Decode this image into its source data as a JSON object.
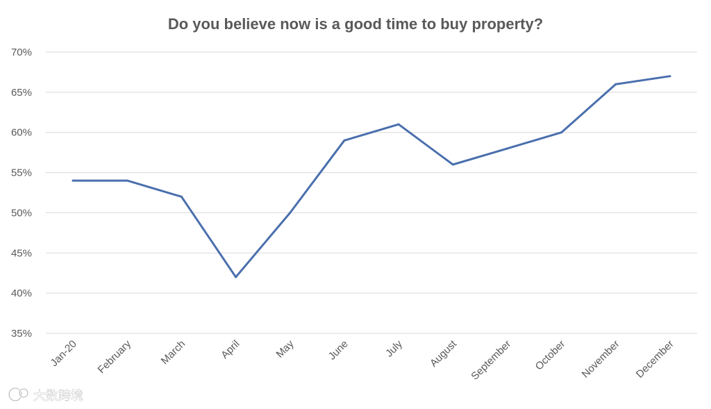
{
  "chart_data": {
    "type": "line",
    "title": "Do you believe now is a good time to buy property?",
    "xlabel": "",
    "ylabel": "",
    "categories": [
      "Jan-20",
      "February",
      "March",
      "April",
      "May",
      "June",
      "July",
      "August",
      "September",
      "October",
      "November",
      "December"
    ],
    "series": [
      {
        "values": [
          54,
          54,
          52,
          42,
          50,
          59,
          61,
          56,
          58,
          60,
          66,
          67
        ],
        "color": "#4a6fad"
      }
    ],
    "ylim": [
      35,
      70
    ],
    "yticks": [
      35,
      40,
      45,
      50,
      55,
      60,
      65,
      70
    ],
    "ytick_labels": [
      "35%",
      "40%",
      "45%",
      "50%",
      "55%",
      "60%",
      "65%",
      "70%"
    ],
    "grid": true,
    "legend": "none"
  },
  "watermark": {
    "text": "大数跨境",
    "icon": "watermark-logo-icon"
  }
}
